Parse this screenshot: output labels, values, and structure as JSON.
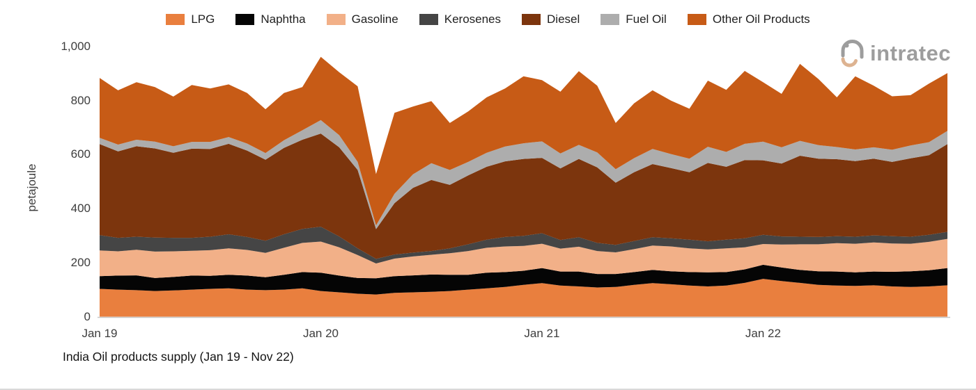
{
  "logo": {
    "text": "intratec"
  },
  "chart_data": {
    "type": "area",
    "stacked": true,
    "title": "India Oil products supply (Jan 19 - Nov 22)",
    "ylabel": "petajoule",
    "unit": "petajoule",
    "ylim": [
      0,
      1000
    ],
    "grid": false,
    "legend_position": "top",
    "yticks": [
      {
        "value": 0,
        "label": "0"
      },
      {
        "value": 200,
        "label": "200"
      },
      {
        "value": 400,
        "label": "400"
      },
      {
        "value": 600,
        "label": "600"
      },
      {
        "value": 800,
        "label": "800"
      },
      {
        "value": 1000,
        "label": "1,000"
      }
    ],
    "xticks": [
      {
        "index": 0,
        "label": "Jan 19"
      },
      {
        "index": 12,
        "label": "Jan 20"
      },
      {
        "index": 24,
        "label": "Jan 21"
      },
      {
        "index": 36,
        "label": "Jan 22"
      }
    ],
    "x": [
      "Jan 19",
      "Feb 19",
      "Mar 19",
      "Apr 19",
      "May 19",
      "Jun 19",
      "Jul 19",
      "Aug 19",
      "Sep 19",
      "Oct 19",
      "Nov 19",
      "Dec 19",
      "Jan 20",
      "Feb 20",
      "Mar 20",
      "Apr 20",
      "May 20",
      "Jun 20",
      "Jul 20",
      "Aug 20",
      "Sep 20",
      "Oct 20",
      "Nov 20",
      "Dec 20",
      "Jan 21",
      "Feb 21",
      "Mar 21",
      "Apr 21",
      "May 21",
      "Jun 21",
      "Jul 21",
      "Aug 21",
      "Sep 21",
      "Oct 21",
      "Nov 21",
      "Dec 21",
      "Jan 22",
      "Feb 22",
      "Mar 22",
      "Apr 22",
      "May 22",
      "Jun 22",
      "Jul 22",
      "Aug 22",
      "Sep 22",
      "Oct 22",
      "Nov 22"
    ],
    "series": [
      {
        "name": "LPG",
        "color": "#E97F3E",
        "values": [
          103,
          100,
          98,
          95,
          97,
          100,
          103,
          105,
          100,
          98,
          100,
          105,
          95,
          90,
          85,
          82,
          88,
          90,
          92,
          95,
          100,
          105,
          110,
          118,
          124,
          115,
          112,
          108,
          110,
          118,
          124,
          120,
          115,
          112,
          115,
          125,
          140,
          132,
          125,
          118,
          115,
          114,
          116,
          112,
          110,
          112,
          116
        ]
      },
      {
        "name": "Naphtha",
        "color": "#050505",
        "values": [
          47,
          52,
          55,
          48,
          50,
          52,
          48,
          50,
          52,
          48,
          55,
          60,
          68,
          62,
          58,
          60,
          62,
          63,
          64,
          60,
          55,
          58,
          55,
          52,
          56,
          52,
          55,
          50,
          48,
          47,
          49,
          48,
          50,
          52,
          50,
          50,
          52,
          50,
          48,
          50,
          52,
          50,
          51,
          54,
          58,
          60,
          64
        ]
      },
      {
        "name": "Gasoline",
        "color": "#F2B088",
        "values": [
          95,
          90,
          95,
          98,
          95,
          92,
          95,
          98,
          95,
          90,
          100,
          108,
          115,
          105,
          85,
          55,
          65,
          70,
          73,
          80,
          88,
          92,
          95,
          92,
          90,
          85,
          92,
          85,
          80,
          85,
          90,
          92,
          88,
          85,
          88,
          82,
          77,
          85,
          95,
          100,
          105,
          106,
          108,
          105,
          102,
          105,
          108
        ]
      },
      {
        "name": "Kerosenes",
        "color": "#454545",
        "values": [
          57,
          50,
          48,
          52,
          50,
          48,
          50,
          52,
          48,
          45,
          50,
          52,
          55,
          40,
          25,
          17,
          15,
          14,
          14,
          18,
          25,
          30,
          35,
          37,
          39,
          32,
          35,
          30,
          28,
          30,
          31,
          30,
          32,
          30,
          32,
          33,
          34,
          30,
          28,
          27,
          26,
          26,
          26,
          27,
          26,
          26,
          26
        ]
      },
      {
        "name": "Diesel",
        "color": "#7C350D",
        "values": [
          337,
          320,
          335,
          330,
          315,
          330,
          325,
          335,
          320,
          300,
          320,
          330,
          345,
          330,
          290,
          110,
          190,
          240,
          263,
          235,
          255,
          270,
          280,
          285,
          279,
          265,
          290,
          280,
          230,
          255,
          271,
          260,
          250,
          290,
          270,
          290,
          276,
          270,
          300,
          290,
          285,
          280,
          284,
          275,
          290,
          295,
          325
        ]
      },
      {
        "name": "Fuel Oil",
        "color": "#ADADAD",
        "values": [
          23,
          25,
          24,
          25,
          24,
          25,
          26,
          25,
          26,
          25,
          28,
          35,
          50,
          45,
          30,
          14,
          35,
          50,
          62,
          55,
          50,
          52,
          55,
          58,
          61,
          55,
          52,
          55,
          50,
          52,
          56,
          52,
          50,
          60,
          55,
          60,
          69,
          60,
          55,
          50,
          45,
          43,
          42,
          45,
          48,
          48,
          49
        ]
      },
      {
        "name": "Other Oil Products",
        "color": "#C75B16",
        "values": [
          222,
          201,
          213,
          202,
          184,
          211,
          198,
          195,
          187,
          162,
          175,
          160,
          234,
          233,
          280,
          190,
          300,
          251,
          230,
          174,
          187,
          205,
          215,
          248,
          227,
          229,
          273,
          247,
          171,
          203,
          217,
          198,
          185,
          245,
          230,
          270,
          220,
          198,
          285,
          245,
          184,
          271,
          228,
          198,
          186,
          217,
          214
        ]
      }
    ]
  }
}
